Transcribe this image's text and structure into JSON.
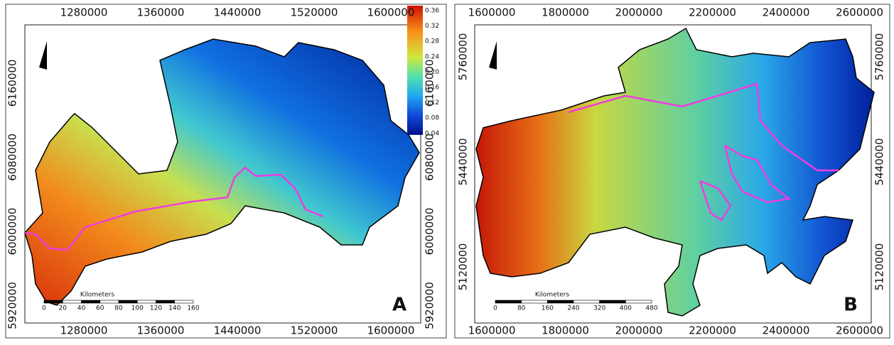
{
  "panels": [
    {
      "label": "A",
      "x_ticks": [
        "1280000",
        "1360000",
        "1440000",
        "1520000",
        "1600000"
      ],
      "y_ticks": [
        "6160000",
        "6080000",
        "6000000",
        "5920000"
      ],
      "scale_bar": {
        "title": "Kilometers",
        "ticks": [
          "0",
          "20",
          "40",
          "60",
          "80",
          "100",
          "120",
          "140",
          "160"
        ]
      },
      "colorbar": {
        "ticks": [
          "0.36",
          "0.32",
          "0.28",
          "0.24",
          "0.20",
          "0.16",
          "0.12",
          "0.08",
          "0.04"
        ]
      }
    },
    {
      "label": "B",
      "x_ticks": [
        "1600000",
        "1800000",
        "2000000",
        "2200000",
        "2400000",
        "2600000"
      ],
      "y_ticks": [
        "5760000",
        "5440000",
        "5120000"
      ],
      "scale_bar": {
        "title": "Kilometers",
        "ticks": [
          "0",
          "80",
          "160",
          "240",
          "320",
          "400",
          "480"
        ]
      }
    }
  ]
}
